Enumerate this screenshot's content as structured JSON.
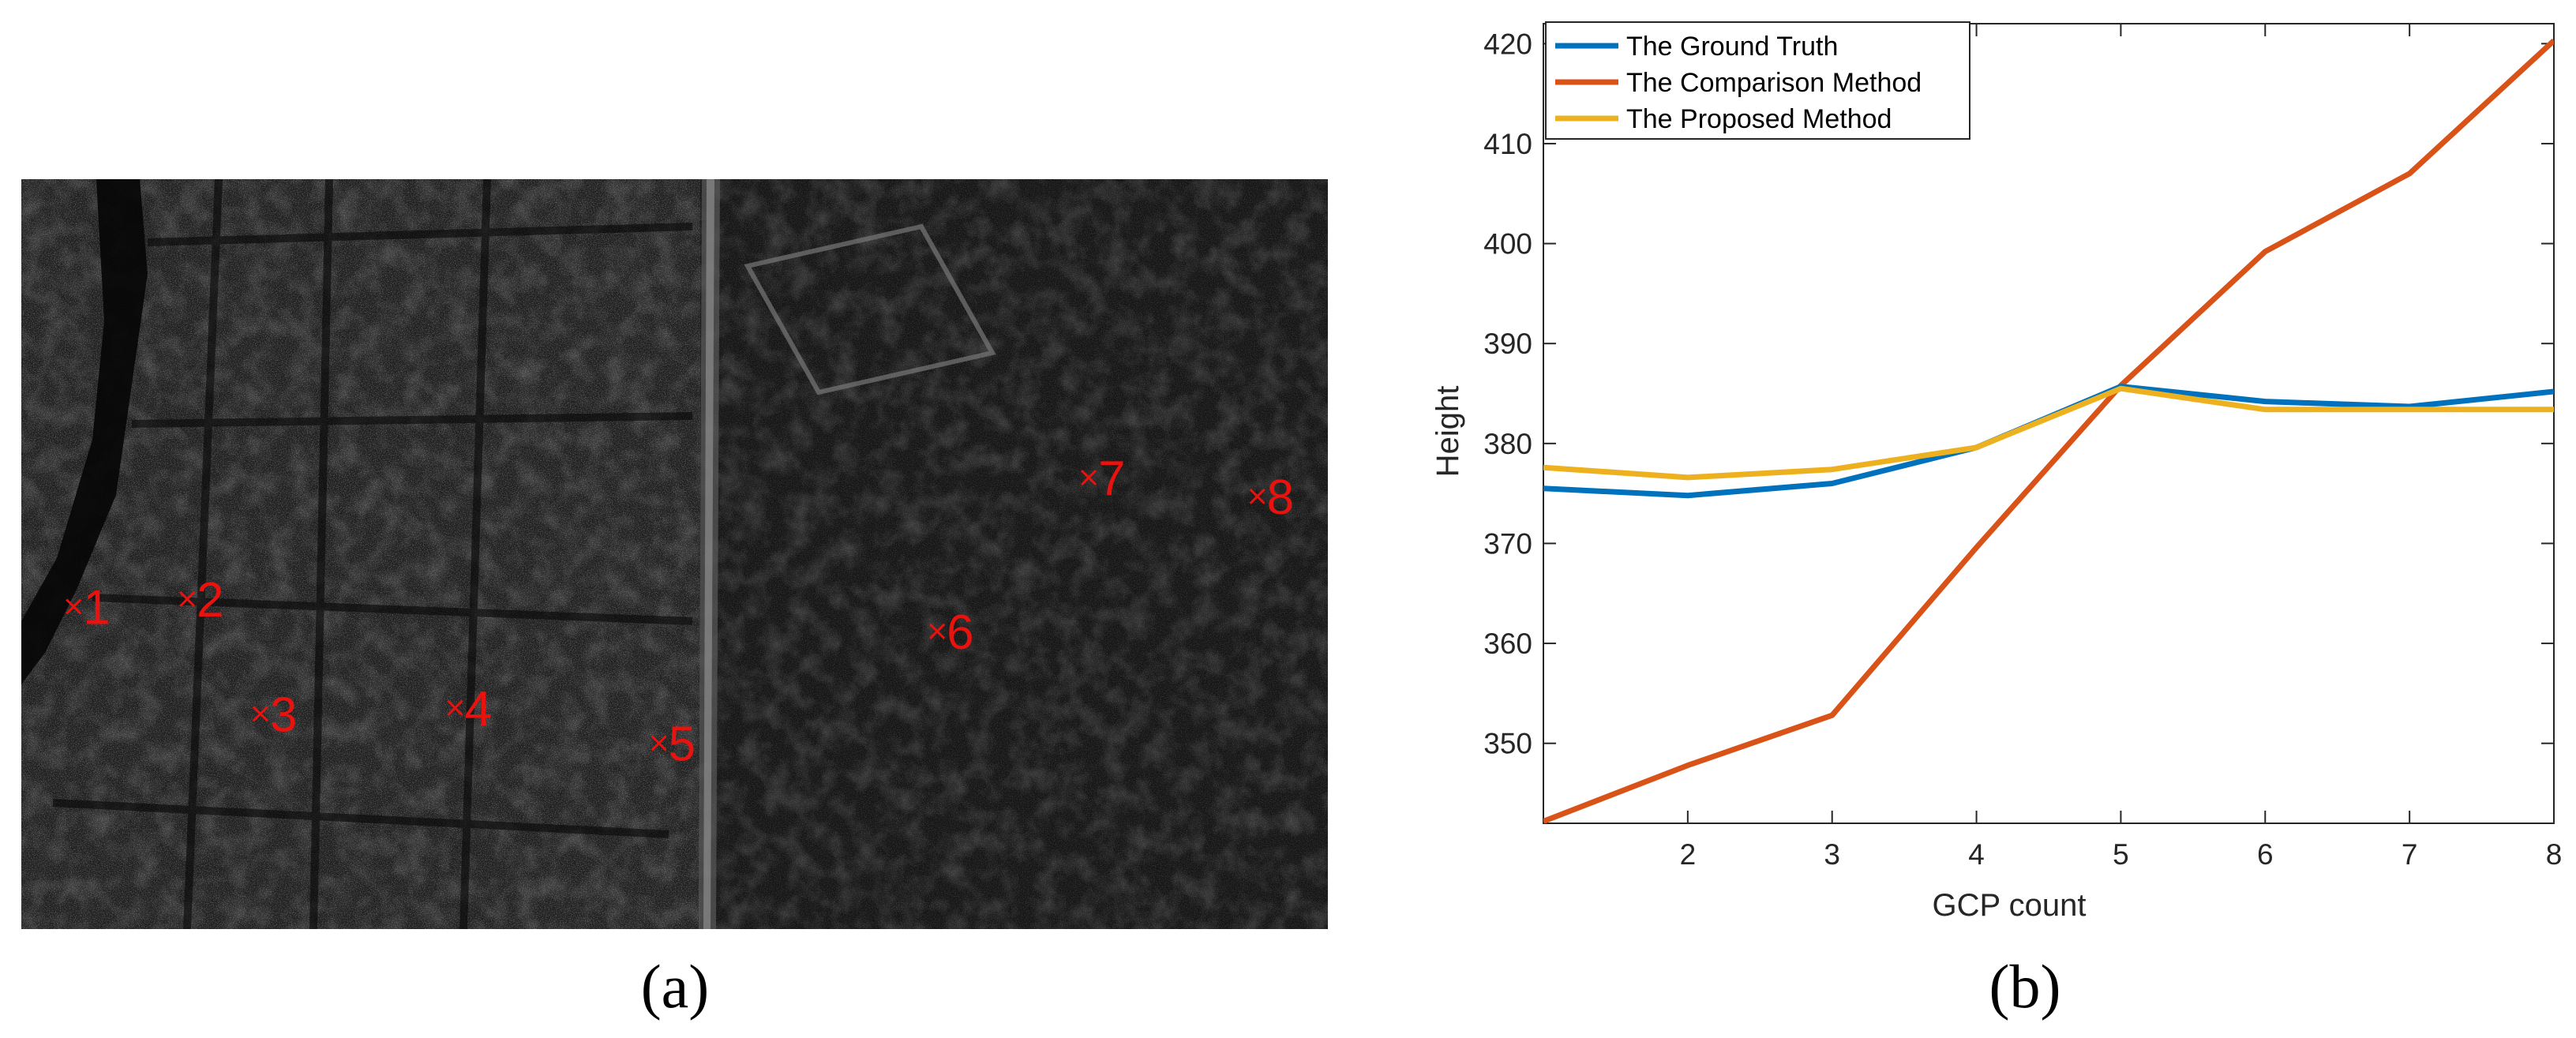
{
  "panel_a": {
    "caption": "(a)",
    "markers": [
      {
        "label": "1",
        "x": 0.04,
        "y": 0.57
      },
      {
        "label": "2",
        "x": 0.127,
        "y": 0.56
      },
      {
        "label": "3",
        "x": 0.183,
        "y": 0.713
      },
      {
        "label": "4",
        "x": 0.332,
        "y": 0.705
      },
      {
        "label": "5",
        "x": 0.488,
        "y": 0.752
      },
      {
        "label": "6",
        "x": 0.701,
        "y": 0.603
      },
      {
        "label": "7",
        "x": 0.817,
        "y": 0.398
      },
      {
        "label": "8",
        "x": 0.946,
        "y": 0.423
      }
    ],
    "marker_color": "#e8120e"
  },
  "panel_b": {
    "caption": "(b)"
  },
  "chart_data": {
    "type": "line",
    "xlabel": "GCP count",
    "ylabel": "Height",
    "xlim": [
      1,
      8
    ],
    "ylim": [
      342,
      422
    ],
    "xticks": [
      2,
      3,
      4,
      5,
      6,
      7,
      8
    ],
    "yticks": [
      350,
      360,
      370,
      380,
      390,
      400,
      410,
      420
    ],
    "x": [
      1,
      2,
      3,
      4,
      5,
      6,
      7,
      8
    ],
    "legend_position": "top-left",
    "grid": false,
    "series": [
      {
        "name": "The Ground Truth",
        "color": "#0072BD",
        "values": [
          375.5,
          374.8,
          376.0,
          379.6,
          385.7,
          384.2,
          383.7,
          385.2
        ]
      },
      {
        "name": "The Comparison Method",
        "color": "#D95319",
        "values": [
          342.2,
          347.8,
          352.8,
          369.6,
          385.8,
          399.2,
          407.0,
          420.3
        ]
      },
      {
        "name": "The Proposed Method",
        "color": "#EDB120",
        "values": [
          377.6,
          376.6,
          377.4,
          379.6,
          385.5,
          383.4,
          383.4,
          383.4
        ]
      }
    ]
  }
}
